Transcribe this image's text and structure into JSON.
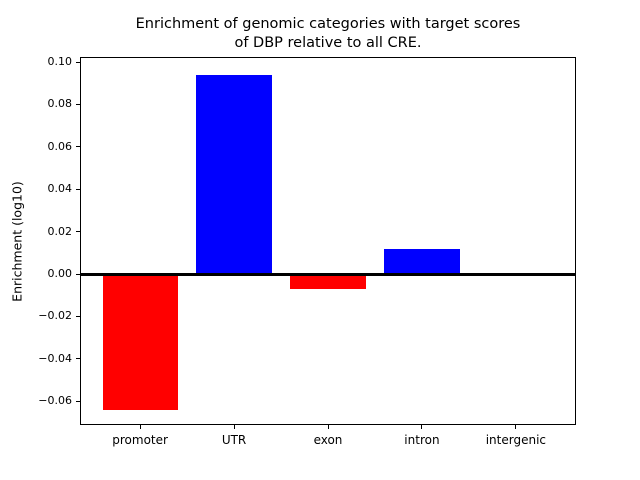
{
  "chart_data": {
    "type": "bar",
    "title": "Enrichment of genomic categories with target scores\nof DBP relative to all CRE.",
    "xlabel": "",
    "ylabel": "Enrichment (log10)",
    "categories": [
      "promoter",
      "UTR",
      "exon",
      "intron",
      "intergenic"
    ],
    "values": [
      -0.064,
      0.094,
      -0.007,
      0.012,
      0.0
    ],
    "bar_colors": [
      "#ff0000",
      "#0000ff",
      "#ff0000",
      "#0000ff",
      "#0000ff"
    ],
    "colors": {
      "positive": "#0000ff",
      "negative": "#ff0000",
      "axis": "#000000",
      "background": "#ffffff"
    },
    "ylim": [
      -0.0712,
      0.1024
    ],
    "xlim": [
      -0.64,
      4.64
    ],
    "bar_width": 0.8,
    "yticks": [
      0.1,
      0.08,
      0.06,
      0.04,
      0.02,
      0.0,
      -0.02,
      -0.04,
      -0.06
    ],
    "ytick_labels": [
      "0.10",
      "0.08",
      "0.06",
      "0.04",
      "0.02",
      "0.00",
      "−0.02",
      "−0.04",
      "−0.06"
    ],
    "grid": false,
    "legend": "none",
    "zero_line": true
  }
}
